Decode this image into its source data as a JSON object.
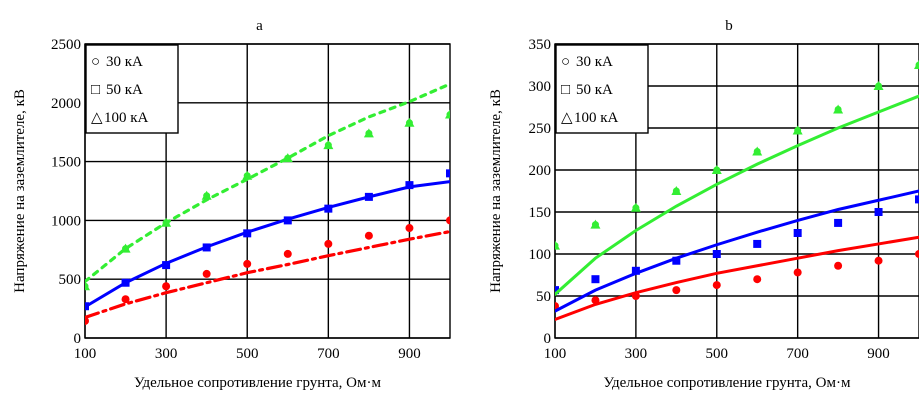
{
  "chart_data": [
    {
      "type": "scatter",
      "title": "a",
      "xlabel": "Удельное сопротивление грунта, Ом·м",
      "ylabel": "Напряжение на заземлителе, кВ",
      "xlim": [
        100,
        1000
      ],
      "ylim": [
        0,
        2500
      ],
      "xticks": [
        100,
        300,
        500,
        700,
        900
      ],
      "xtick_labels": [
        "100",
        "300",
        "500",
        "700",
        "900"
      ],
      "yticks": [
        0,
        500,
        1000,
        1500,
        2000,
        2500
      ],
      "ytick_labels": [
        "0",
        "500",
        "1000",
        "1500",
        "2000",
        "2500"
      ],
      "grid": true,
      "legend": {
        "placement": "top-left",
        "entries": [
          {
            "symbol": "○",
            "label": "30 кА"
          },
          {
            "symbol": "□",
            "label": "50 кА"
          },
          {
            "symbol": "△",
            "label": "100 кА"
          }
        ]
      },
      "series": [
        {
          "color": "#ff0000",
          "line_style": "dashdot",
          "points": {
            "x": [
              100,
              200,
              300,
              400,
              500,
              600,
              700,
              800,
              900,
              1000
            ],
            "y": [
              145,
              330,
              440,
              545,
              630,
              715,
              800,
              870,
              935,
              1000
            ]
          },
          "fit": {
            "x": [
              100,
              200,
              300,
              400,
              500,
              600,
              700,
              800,
              900,
              1000
            ],
            "y": [
              175,
              290,
              385,
              470,
              555,
              625,
              700,
              770,
              840,
              905
            ]
          }
        },
        {
          "color": "#0000ff",
          "line_style": "solid",
          "points": {
            "x": [
              100,
              200,
              300,
              400,
              500,
              600,
              700,
              800,
              900,
              1000
            ],
            "y": [
              270,
              470,
              620,
              770,
              890,
              1000,
              1100,
              1200,
              1300,
              1400
            ]
          },
          "fit": {
            "x": [
              100,
              200,
              300,
              400,
              500,
              600,
              700,
              800,
              900,
              1000
            ],
            "y": [
              265,
              470,
              635,
              775,
              900,
              1010,
              1110,
              1200,
              1285,
              1330
            ]
          }
        },
        {
          "color": "#33ee33",
          "line_style": "dotted",
          "points": {
            "x": [
              100,
              200,
              300,
              400,
              500,
              600,
              700,
              800,
              900,
              1000
            ],
            "y": [
              440,
              760,
              980,
              1210,
              1380,
              1530,
              1640,
              1740,
              1830,
              1900
            ]
          },
          "fit": {
            "x": [
              100,
              200,
              300,
              400,
              500,
              600,
              700,
              800,
              900,
              1000
            ],
            "y": [
              480,
              760,
              980,
              1175,
              1350,
              1530,
              1720,
              1880,
              2010,
              2160
            ]
          }
        }
      ]
    },
    {
      "type": "scatter",
      "title": "b",
      "xlabel": "Удельное сопротивление грунта, Ом·м",
      "ylabel": "Напряжение на заземлителе, кВ",
      "xlim": [
        100,
        1000
      ],
      "ylim": [
        0,
        350
      ],
      "xticks": [
        100,
        300,
        500,
        700,
        900
      ],
      "xtick_labels": [
        "100",
        "300",
        "500",
        "700",
        "900"
      ],
      "yticks": [
        0,
        50,
        100,
        150,
        200,
        250,
        300,
        350
      ],
      "ytick_labels": [
        "0",
        "50",
        "100",
        "150",
        "200",
        "250",
        "300",
        "350"
      ],
      "grid": true,
      "legend": {
        "placement": "top-left",
        "entries": [
          {
            "symbol": "○",
            "label": "30 кА"
          },
          {
            "symbol": "□",
            "label": "50 кА"
          },
          {
            "symbol": "△",
            "label": "100 кА"
          }
        ]
      },
      "series": [
        {
          "color": "#ff0000",
          "line_style": "solid",
          "points": {
            "x": [
              100,
              200,
              300,
              400,
              500,
              600,
              700,
              800,
              900,
              1000
            ],
            "y": [
              38,
              45,
              50,
              57,
              63,
              70,
              78,
              86,
              92,
              100
            ]
          },
          "fit": {
            "x": [
              100,
              200,
              300,
              400,
              500,
              600,
              700,
              800,
              900,
              1000
            ],
            "y": [
              22,
              40,
              54,
              66,
              77,
              86,
              95,
              104,
              112,
              120
            ]
          }
        },
        {
          "color": "#0000ff",
          "line_style": "solid",
          "points": {
            "x": [
              100,
              200,
              300,
              400,
              500,
              600,
              700,
              800,
              900,
              1000
            ],
            "y": [
              57,
              70,
              80,
              92,
              100,
              112,
              125,
              137,
              150,
              165
            ]
          },
          "fit": {
            "x": [
              100,
              200,
              300,
              400,
              500,
              600,
              700,
              800,
              900,
              1000
            ],
            "y": [
              32,
              57,
              77,
              95,
              111,
              126,
              140,
              153,
              164,
              175
            ]
          }
        },
        {
          "color": "#33ee33",
          "line_style": "solid",
          "points": {
            "x": [
              100,
              200,
              300,
              400,
              500,
              600,
              700,
              800,
              900,
              1000
            ],
            "y": [
              110,
              135,
              155,
              175,
              200,
              222,
              247,
              272,
              300,
              325
            ]
          },
          "fit": {
            "x": [
              100,
              200,
              300,
              400,
              500,
              600,
              700,
              800,
              900,
              1000
            ],
            "y": [
              52,
              95,
              128,
              157,
              183,
              207,
              229,
              250,
              269,
              288
            ]
          }
        }
      ]
    }
  ]
}
